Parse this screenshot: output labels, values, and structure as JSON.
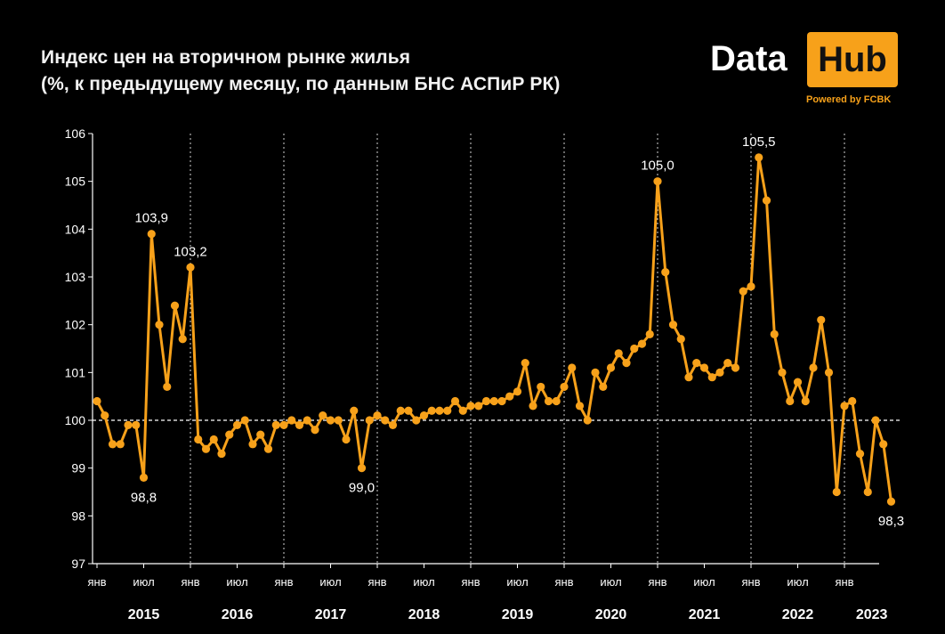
{
  "header": {
    "title_line1": "Индекс цен на вторичном рынке жилья",
    "title_line2": "(%, к предыдущему месяцу, по данным БНС АСПиР РК)"
  },
  "logo": {
    "word1": "Data",
    "word2": "Hub",
    "tagline": "Powered by FCBK",
    "accent_color": "#f7a11a"
  },
  "chart_data": {
    "type": "line",
    "title": "Индекс цен на вторичном рынке жилья",
    "subtitle": "(%, к предыдущему месяцу, по данным БНС АСПиР РК)",
    "xlabel": "",
    "ylabel": "",
    "ylim": [
      97,
      106
    ],
    "y_ticks": [
      "97",
      "98",
      "99",
      "100",
      "101",
      "102",
      "103",
      "104",
      "105",
      "106"
    ],
    "reference_line": 100,
    "line_color": "#f7a11a",
    "month_tick_labels": [
      "янв",
      "июл",
      "янв",
      "июл",
      "янв",
      "июл",
      "янв",
      "июл",
      "янв",
      "июл",
      "янв",
      "июл",
      "янв",
      "июл",
      "янв",
      "июл",
      "янв"
    ],
    "years": [
      "2015",
      "2016",
      "2017",
      "2018",
      "2019",
      "2020",
      "2021",
      "2022",
      "2023"
    ],
    "start": "2015-01",
    "series": [
      {
        "name": "Индекс цен",
        "values": [
          100.4,
          100.1,
          99.5,
          99.5,
          99.9,
          99.9,
          98.8,
          103.9,
          102.0,
          100.7,
          102.4,
          101.7,
          103.2,
          99.6,
          99.4,
          99.6,
          99.3,
          99.7,
          99.9,
          100.0,
          99.5,
          99.7,
          99.4,
          99.9,
          99.9,
          100.0,
          99.9,
          100.0,
          99.8,
          100.1,
          100.0,
          100.0,
          99.6,
          100.2,
          99.0,
          100.0,
          100.1,
          100.0,
          99.9,
          100.2,
          100.2,
          100.0,
          100.1,
          100.2,
          100.2,
          100.2,
          100.4,
          100.2,
          100.3,
          100.3,
          100.4,
          100.4,
          100.4,
          100.5,
          100.6,
          101.2,
          100.3,
          100.7,
          100.4,
          100.4,
          100.7,
          101.1,
          100.3,
          100.0,
          101.0,
          100.7,
          101.1,
          101.4,
          101.2,
          101.5,
          101.6,
          101.8,
          105.0,
          103.1,
          102.0,
          101.7,
          100.9,
          101.2,
          101.1,
          100.9,
          101.0,
          101.2,
          101.1,
          102.7,
          102.8,
          105.5,
          104.6,
          101.8,
          101.0,
          100.4,
          100.8,
          100.4,
          101.1,
          102.1,
          101.0,
          98.5,
          100.3,
          100.4,
          99.3,
          98.5,
          100.0,
          99.5,
          98.3
        ]
      }
    ],
    "annotations": [
      {
        "index": 6,
        "label": "98,8",
        "pos": "below"
      },
      {
        "index": 7,
        "label": "103,9",
        "pos": "above"
      },
      {
        "index": 12,
        "label": "103,2",
        "pos": "above"
      },
      {
        "index": 34,
        "label": "99,0",
        "pos": "below"
      },
      {
        "index": 72,
        "label": "105,0",
        "pos": "above"
      },
      {
        "index": 85,
        "label": "105,5",
        "pos": "above"
      },
      {
        "index": 102,
        "label": "98,3",
        "pos": "below"
      }
    ]
  }
}
